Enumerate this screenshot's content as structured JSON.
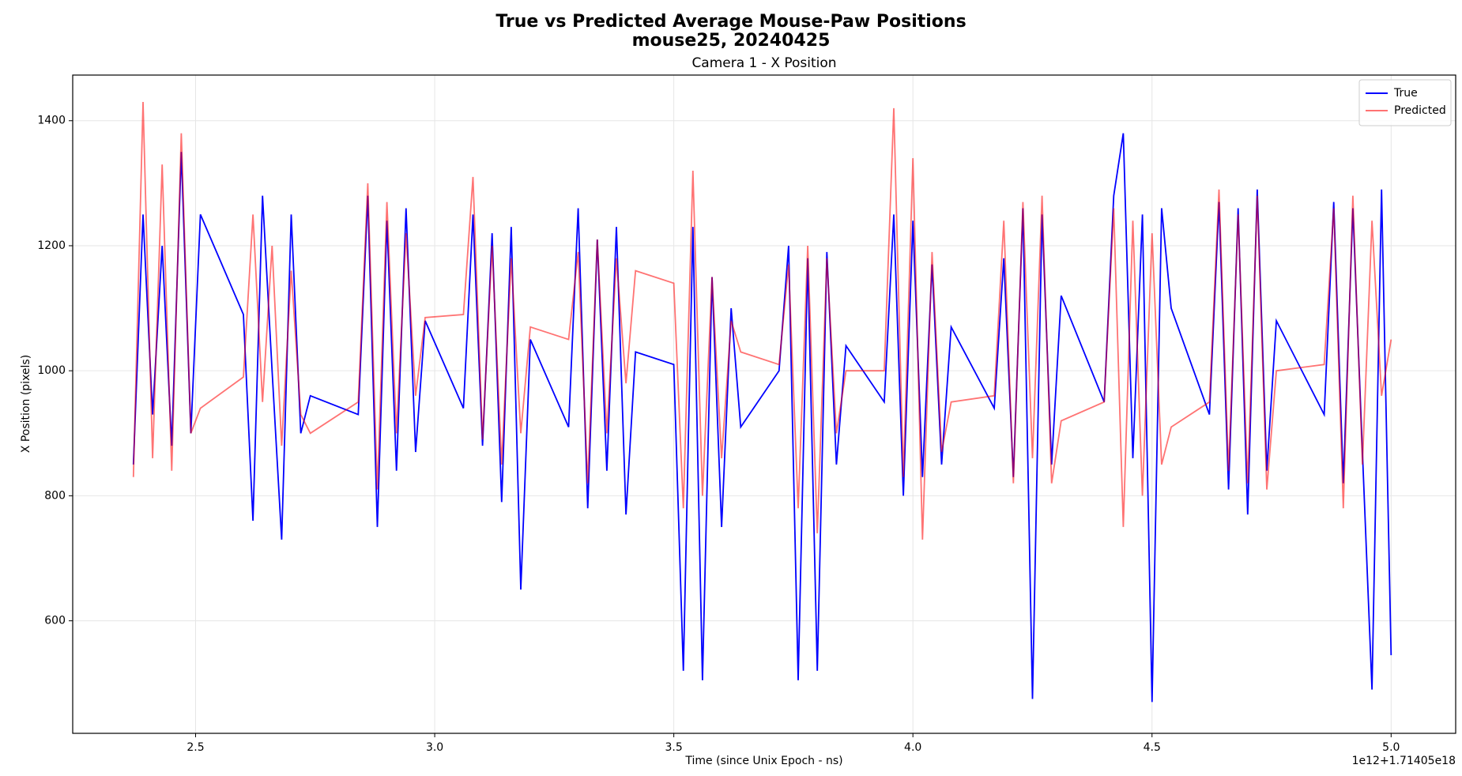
{
  "chart_data": {
    "type": "line",
    "title": "True vs Predicted Average Mouse-Paw Positions",
    "subtitle": "mouse25, 20240425",
    "axes_title": "Camera 1 - X Position",
    "x_label": "Time (since Unix Epoch - ns)",
    "y_label": "X Position (pixels)",
    "x_offset_label": "1e12+1.71405e18",
    "xlim": [
      2.243,
      5.135
    ],
    "ylim": [
      420,
      1473
    ],
    "xticks": [
      2.5,
      {
        "value": 3,
        "label": "3.0"
      },
      3.5,
      {
        "value": 4,
        "label": "4.0"
      },
      4.5,
      {
        "value": 5,
        "label": "5.0"
      }
    ],
    "yticks": [
      600,
      800,
      1000,
      1200,
      1400
    ],
    "grid": true,
    "legend": "upper right",
    "x": [
      2.37,
      2.39,
      2.41,
      2.43,
      2.45,
      2.47,
      2.49,
      2.51,
      2.6,
      2.62,
      2.64,
      2.66,
      2.68,
      2.7,
      2.72,
      2.74,
      2.84,
      2.86,
      2.88,
      2.9,
      2.92,
      2.94,
      2.96,
      2.98,
      3.06,
      3.08,
      3.1,
      3.12,
      3.14,
      3.16,
      3.18,
      3.2,
      3.28,
      3.3,
      3.32,
      3.34,
      3.36,
      3.38,
      3.4,
      3.42,
      3.5,
      3.52,
      3.54,
      3.56,
      3.58,
      3.6,
      3.62,
      3.64,
      3.72,
      3.74,
      3.76,
      3.78,
      3.8,
      3.82,
      3.84,
      3.86,
      3.94,
      3.96,
      3.98,
      4.0,
      4.02,
      4.04,
      4.06,
      4.08,
      4.17,
      4.19,
      4.21,
      4.23,
      4.25,
      4.27,
      4.29,
      4.31,
      4.4,
      4.42,
      4.44,
      4.46,
      4.48,
      4.5,
      4.52,
      4.54,
      4.62,
      4.64,
      4.66,
      4.68,
      4.7,
      4.72,
      4.74,
      4.76,
      4.86,
      4.88,
      4.9,
      4.92,
      4.94,
      4.96,
      4.98,
      5.0
    ],
    "series": [
      {
        "name": "True",
        "color": "#0000ff",
        "opacity": 1,
        "values": [
          850,
          1250,
          930,
          1200,
          880,
          1350,
          900,
          1250,
          1090,
          760,
          1280,
          1000,
          730,
          1250,
          900,
          960,
          930,
          1280,
          750,
          1240,
          840,
          1260,
          870,
          1080,
          940,
          1250,
          880,
          1220,
          790,
          1230,
          650,
          1050,
          910,
          1260,
          780,
          1210,
          840,
          1230,
          770,
          1030,
          1010,
          520,
          1230,
          505,
          1150,
          750,
          1100,
          910,
          1000,
          1200,
          505,
          1180,
          520,
          1190,
          850,
          1040,
          950,
          1250,
          800,
          1240,
          830,
          1170,
          850,
          1070,
          940,
          1180,
          830,
          1260,
          475,
          1250,
          850,
          1120,
          950,
          1280,
          1380,
          860,
          1250,
          470,
          1260,
          1100,
          930,
          1270,
          810,
          1260,
          770,
          1290,
          840,
          1080,
          930,
          1270,
          820,
          1260,
          870,
          490,
          1290,
          545
        ]
      },
      {
        "name": "Predicted",
        "color": "#ff0000",
        "opacity": 0.55,
        "values": [
          830,
          1430,
          860,
          1330,
          840,
          1380,
          900,
          940,
          990,
          1250,
          950,
          1200,
          880,
          1160,
          930,
          900,
          950,
          1300,
          810,
          1270,
          900,
          1220,
          960,
          1085,
          1090,
          1310,
          890,
          1200,
          850,
          1180,
          900,
          1070,
          1050,
          1190,
          820,
          1210,
          900,
          1180,
          980,
          1160,
          1140,
          780,
          1320,
          800,
          1150,
          860,
          1080,
          1030,
          1010,
          1170,
          780,
          1200,
          740,
          1180,
          900,
          1000,
          1000,
          1420,
          830,
          1340,
          730,
          1190,
          870,
          950,
          960,
          1240,
          820,
          1270,
          860,
          1280,
          820,
          920,
          950,
          1260,
          750,
          1240,
          800,
          1220,
          850,
          910,
          950,
          1290,
          840,
          1250,
          820,
          1280,
          810,
          1000,
          1010,
          1260,
          780,
          1280,
          850,
          1240,
          960,
          1050
        ]
      }
    ]
  }
}
